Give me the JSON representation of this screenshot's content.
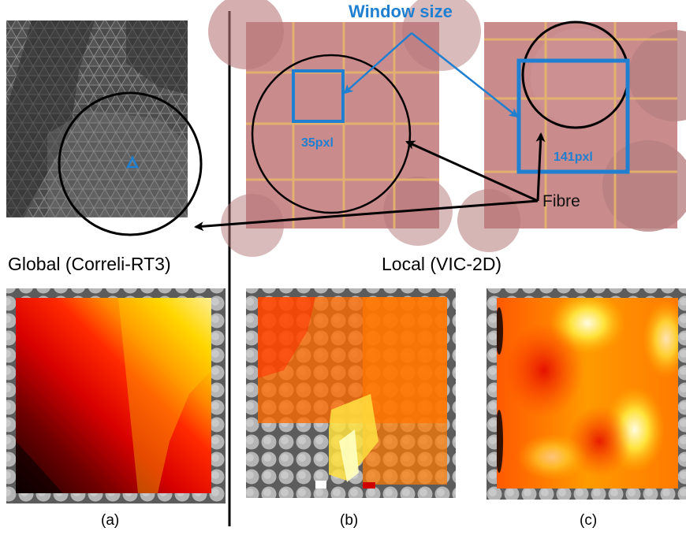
{
  "sections": {
    "global": "Global (Correli-RT3)",
    "local": "Local (VIC-2D)"
  },
  "annotations": {
    "window_size": "Window size",
    "small_window": "35pxl",
    "large_window": "141pxl",
    "fibre": "Fibre"
  },
  "panels": {
    "a": "(a)",
    "b": "(b)",
    "c": "(c)"
  },
  "colors": {
    "annotation_blue": "#1f7fd0",
    "grid_yellow": "#f2c55a",
    "micrograph_pink": "#c98b8c",
    "mesh_dark": "#3a3a3a"
  }
}
